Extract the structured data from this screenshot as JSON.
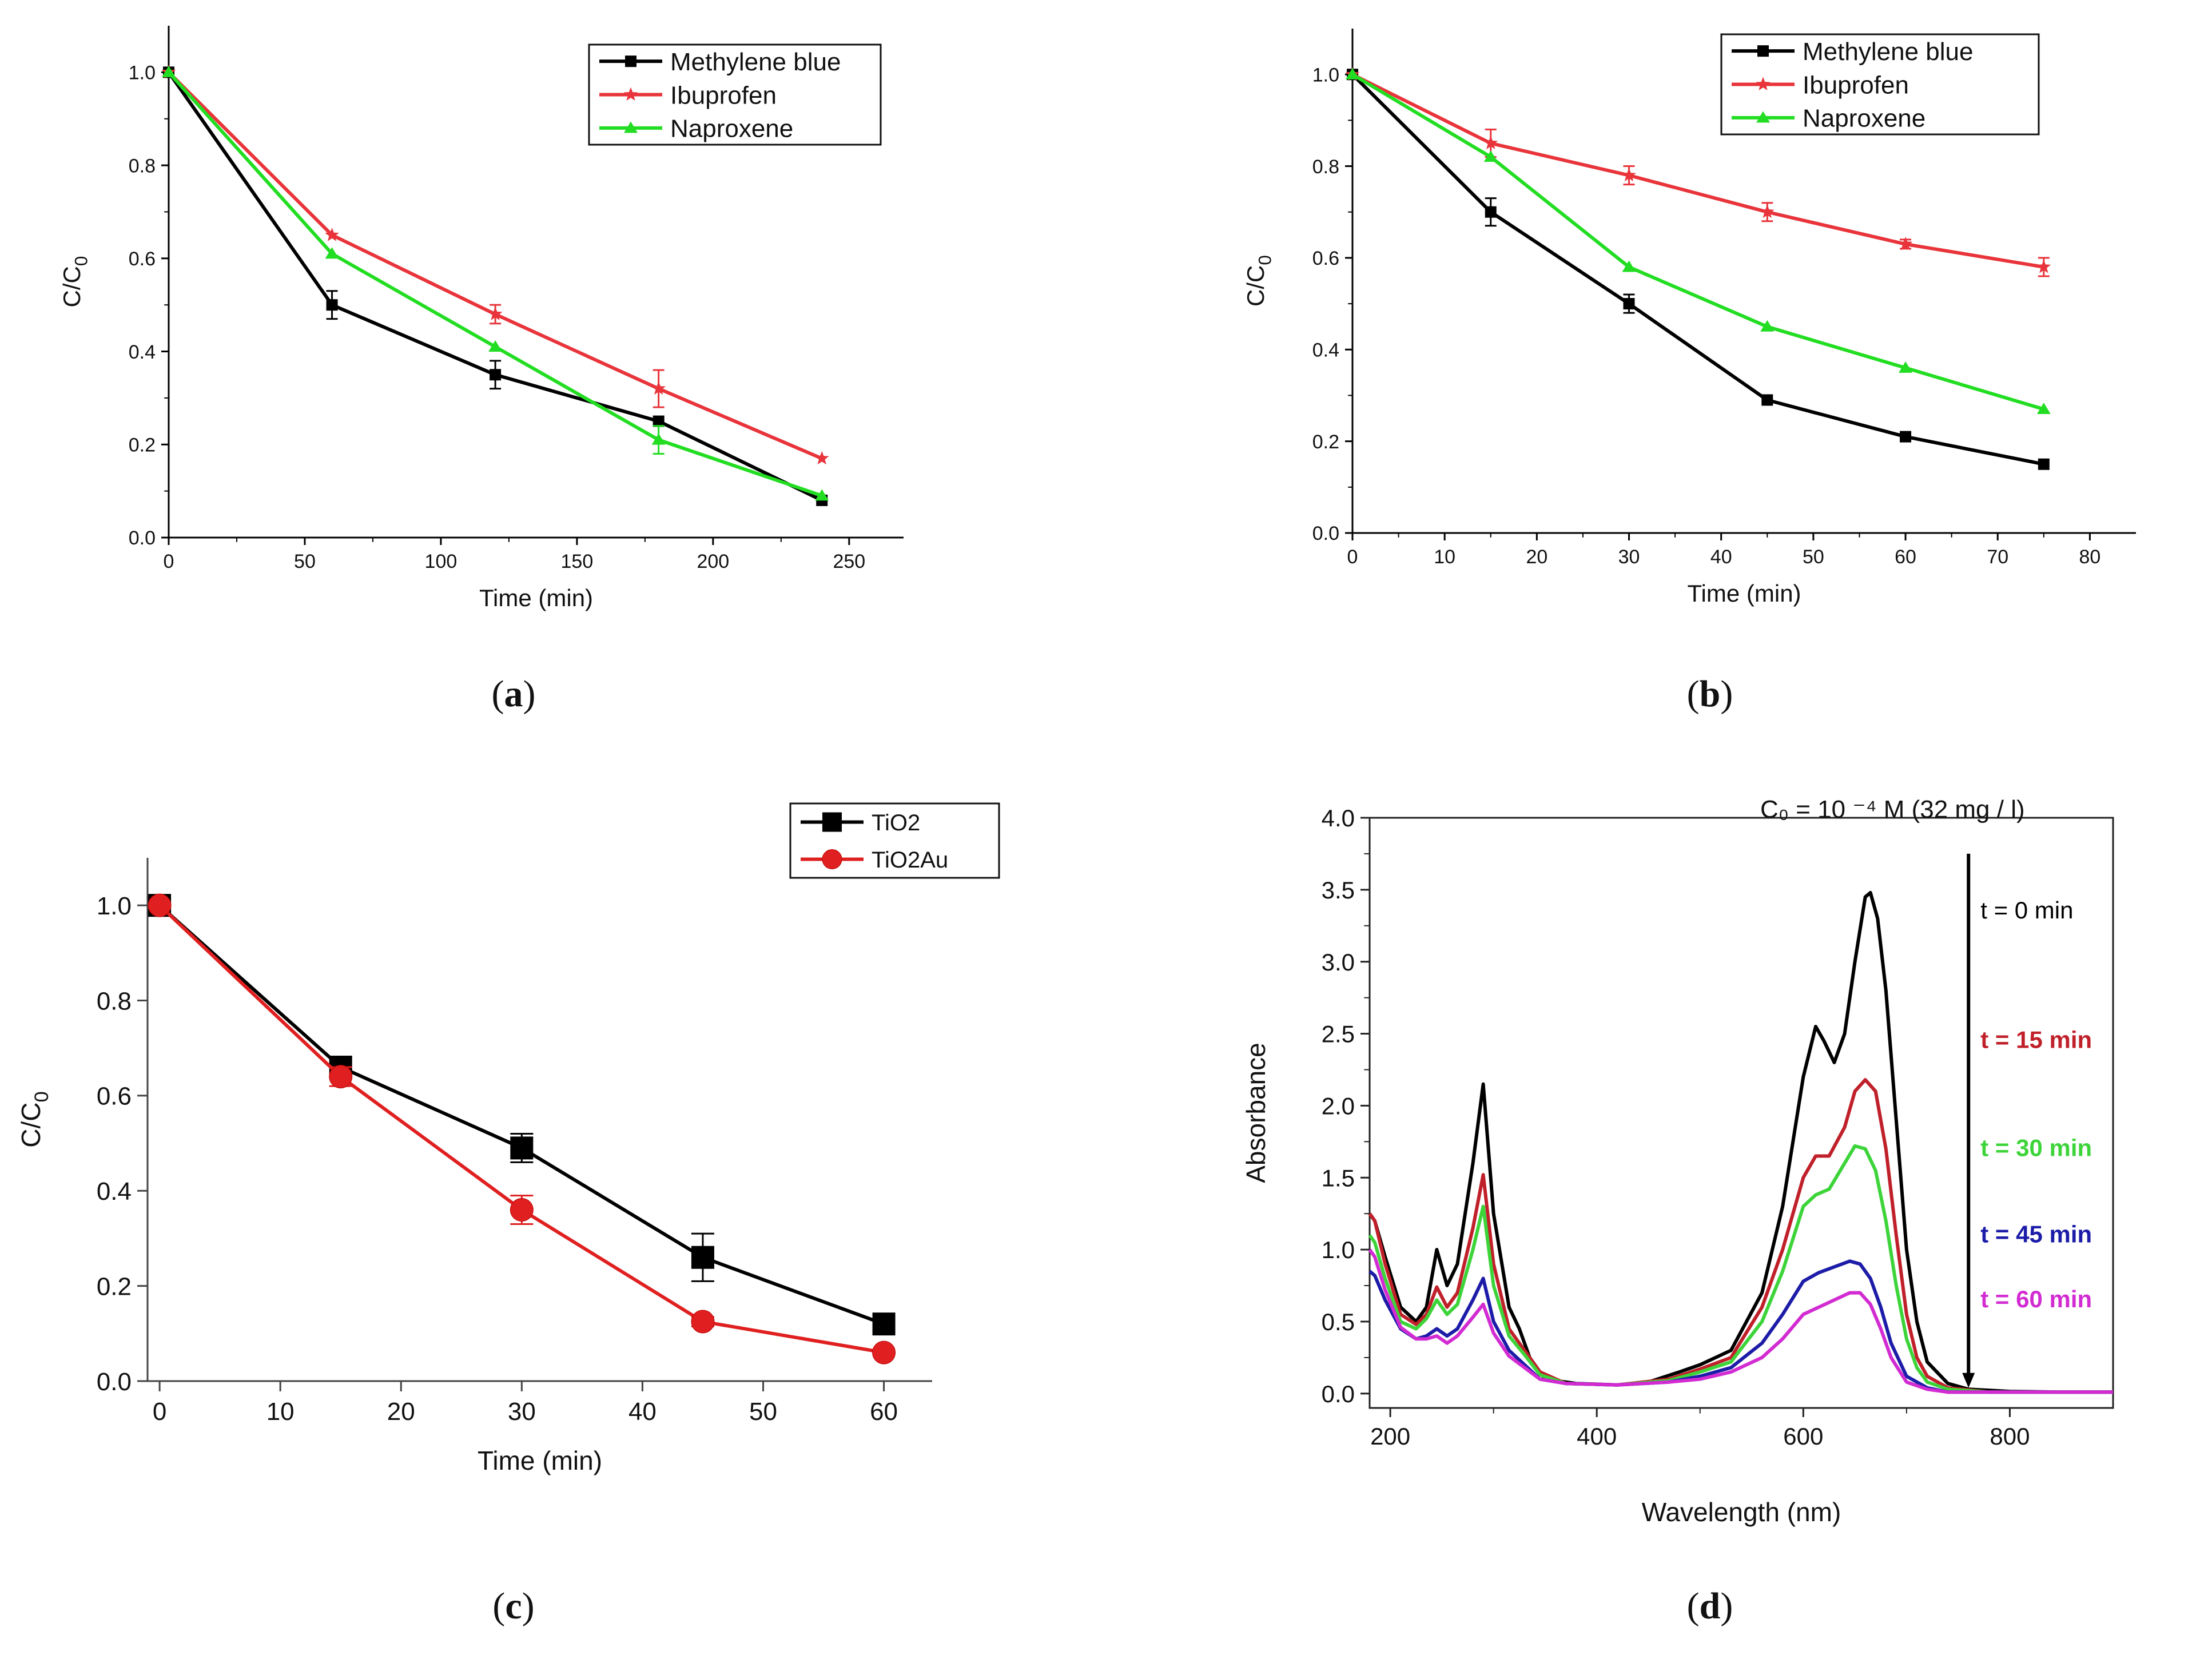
{
  "chart_data": [
    {
      "id": "a",
      "type": "line",
      "caption_letter": "a",
      "xlabel": "Time (min)",
      "ylabel_main": "C/C",
      "ylabel_sub": "0",
      "xlim": [
        0,
        270
      ],
      "ylim": [
        0,
        1.1
      ],
      "xticks": [
        0,
        50,
        100,
        150,
        200,
        250
      ],
      "yticks": [
        0.0,
        0.2,
        0.4,
        0.6,
        0.8,
        1.0
      ],
      "x_decimals": 0,
      "y_decimals": 1,
      "legend_position": "top-right",
      "series": [
        {
          "name": "Methylene blue",
          "color": "#000000",
          "marker": "square",
          "x": [
            0,
            60,
            120,
            180,
            240
          ],
          "y": [
            1.0,
            0.5,
            0.35,
            0.25,
            0.08
          ],
          "err": [
            0,
            0.03,
            0.03,
            0,
            0
          ]
        },
        {
          "name": "Ibuprofen",
          "color": "#e8343a",
          "marker": "star",
          "x": [
            0,
            60,
            120,
            180,
            240
          ],
          "y": [
            1.0,
            0.65,
            0.48,
            0.32,
            0.17
          ],
          "err": [
            0,
            0,
            0.02,
            0.04,
            0
          ]
        },
        {
          "name": "Naproxene",
          "color": "#22dd22",
          "marker": "triangle",
          "x": [
            0,
            60,
            120,
            180,
            240
          ],
          "y": [
            1.0,
            0.61,
            0.41,
            0.21,
            0.09
          ],
          "err": [
            0,
            0,
            0,
            0.03,
            0
          ]
        }
      ]
    },
    {
      "id": "b",
      "type": "line",
      "caption_letter": "b",
      "xlabel": "Time (min)",
      "ylabel_main": "C/C",
      "ylabel_sub": "0",
      "xlim": [
        0,
        85
      ],
      "ylim": [
        0,
        1.1
      ],
      "xticks": [
        0,
        10,
        20,
        30,
        40,
        50,
        60,
        70,
        80
      ],
      "yticks": [
        0.0,
        0.2,
        0.4,
        0.6,
        0.8,
        1.0
      ],
      "x_decimals": 0,
      "y_decimals": 1,
      "legend_position": "top-right",
      "series": [
        {
          "name": "Methylene blue",
          "color": "#000000",
          "marker": "square",
          "x": [
            0,
            15,
            30,
            45,
            60,
            75
          ],
          "y": [
            1.0,
            0.7,
            0.5,
            0.29,
            0.21,
            0.15
          ],
          "err": [
            0,
            0.03,
            0.02,
            0,
            0,
            0
          ]
        },
        {
          "name": "Ibuprofen",
          "color": "#e8343a",
          "marker": "star",
          "x": [
            0,
            15,
            30,
            45,
            60,
            75
          ],
          "y": [
            1.0,
            0.85,
            0.78,
            0.7,
            0.63,
            0.58
          ],
          "err": [
            0,
            0.03,
            0.02,
            0.02,
            0.01,
            0.02
          ]
        },
        {
          "name": "Naproxene",
          "color": "#22dd22",
          "marker": "triangle",
          "x": [
            0,
            15,
            30,
            45,
            60,
            75
          ],
          "y": [
            1.0,
            0.82,
            0.58,
            0.45,
            0.36,
            0.27
          ],
          "err": [
            0,
            0,
            0,
            0,
            0,
            0
          ]
        }
      ]
    },
    {
      "id": "c",
      "type": "line",
      "caption_letter": "c",
      "xlabel": "Time (min)",
      "ylabel_main": "C/C",
      "ylabel_sub": "0",
      "xlim": [
        -1,
        64
      ],
      "ylim": [
        0,
        1.1
      ],
      "xticks": [
        0,
        10,
        20,
        30,
        40,
        50,
        60
      ],
      "yticks": [
        0.0,
        0.2,
        0.4,
        0.6,
        0.8,
        1.0
      ],
      "x_decimals": 0,
      "y_decimals": 1,
      "legend_position": "top-right",
      "series": [
        {
          "name": "TiO2",
          "color": "#000000",
          "marker": "square",
          "x": [
            0,
            15,
            30,
            45,
            60
          ],
          "y": [
            1.0,
            0.66,
            0.49,
            0.26,
            0.12
          ],
          "err": [
            0,
            0.02,
            0.03,
            0.05,
            0
          ]
        },
        {
          "name": "TiO2Au",
          "color": "#e02020",
          "marker": "circle",
          "x": [
            0,
            15,
            30,
            45,
            60
          ],
          "y": [
            1.0,
            0.64,
            0.36,
            0.125,
            0.06
          ],
          "err": [
            0,
            0.02,
            0.03,
            0.01,
            0
          ]
        }
      ]
    },
    {
      "id": "d",
      "type": "line",
      "caption_letter": "d",
      "xlabel": "Wavelength (nm)",
      "ylabel": "Absorbance",
      "xlim": [
        180,
        900
      ],
      "ylim": [
        -0.1,
        4.0
      ],
      "xticks": [
        200,
        400,
        600,
        800
      ],
      "yticks": [
        0.0,
        0.5,
        1.0,
        1.5,
        2.0,
        2.5,
        3.0,
        3.5,
        4.0
      ],
      "x_decimals": 0,
      "y_decimals": 1,
      "concentration_label": "C₀  = 10 ⁻⁴ M (32 mg / l)",
      "arrow_wavelength": 760,
      "arrow_from": 3.75,
      "arrow_to": 0.04,
      "series": [
        {
          "name": "t = 0 min",
          "color": "#000000",
          "x": [
            180,
            185,
            195,
            210,
            225,
            235,
            245,
            255,
            265,
            280,
            290,
            300,
            315,
            325,
            335,
            350,
            380,
            420,
            450,
            480,
            500,
            530,
            560,
            580,
            600,
            612,
            620,
            630,
            640,
            650,
            660,
            665,
            672,
            680,
            690,
            700,
            710,
            720,
            740,
            760,
            800,
            850,
            900
          ],
          "y": [
            1.25,
            1.2,
            0.95,
            0.6,
            0.5,
            0.6,
            1.0,
            0.75,
            0.9,
            1.6,
            2.15,
            1.25,
            0.6,
            0.45,
            0.25,
            0.1,
            0.07,
            0.06,
            0.08,
            0.15,
            0.2,
            0.3,
            0.7,
            1.3,
            2.2,
            2.55,
            2.45,
            2.3,
            2.5,
            3.0,
            3.45,
            3.48,
            3.3,
            2.8,
            1.9,
            1.0,
            0.5,
            0.22,
            0.07,
            0.03,
            0.015,
            0.01,
            0.01
          ]
        },
        {
          "name": "t = 15 min",
          "color": "#c0202a",
          "x": [
            180,
            185,
            195,
            210,
            225,
            235,
            245,
            255,
            265,
            280,
            290,
            300,
            315,
            330,
            345,
            370,
            420,
            470,
            500,
            530,
            560,
            580,
            600,
            612,
            625,
            640,
            650,
            660,
            670,
            680,
            690,
            700,
            710,
            720,
            740,
            780,
            900
          ],
          "y": [
            1.25,
            1.2,
            0.9,
            0.55,
            0.48,
            0.55,
            0.74,
            0.6,
            0.7,
            1.15,
            1.52,
            0.9,
            0.45,
            0.3,
            0.15,
            0.07,
            0.06,
            0.1,
            0.17,
            0.25,
            0.6,
            1.0,
            1.5,
            1.65,
            1.65,
            1.85,
            2.1,
            2.18,
            2.1,
            1.7,
            1.1,
            0.55,
            0.25,
            0.12,
            0.04,
            0.01,
            0.01
          ]
        },
        {
          "name": "t = 30 min",
          "color": "#3dd43a",
          "x": [
            180,
            185,
            195,
            210,
            225,
            235,
            245,
            255,
            265,
            280,
            290,
            300,
            315,
            330,
            345,
            370,
            420,
            470,
            500,
            530,
            560,
            580,
            600,
            612,
            625,
            640,
            650,
            660,
            670,
            680,
            690,
            700,
            710,
            720,
            740,
            780,
            900
          ],
          "y": [
            1.1,
            1.05,
            0.8,
            0.5,
            0.45,
            0.52,
            0.65,
            0.55,
            0.62,
            1.0,
            1.3,
            0.75,
            0.4,
            0.27,
            0.13,
            0.07,
            0.06,
            0.09,
            0.15,
            0.22,
            0.5,
            0.85,
            1.3,
            1.38,
            1.42,
            1.6,
            1.72,
            1.7,
            1.55,
            1.2,
            0.75,
            0.38,
            0.18,
            0.08,
            0.03,
            0.01,
            0.01
          ]
        },
        {
          "name": "t = 45 min",
          "color": "#1c1ca8",
          "x": [
            180,
            185,
            195,
            210,
            225,
            235,
            245,
            255,
            265,
            280,
            290,
            300,
            315,
            330,
            345,
            370,
            420,
            470,
            500,
            530,
            560,
            580,
            600,
            615,
            630,
            645,
            655,
            665,
            675,
            685,
            700,
            720,
            740,
            900
          ],
          "y": [
            0.85,
            0.82,
            0.65,
            0.45,
            0.38,
            0.4,
            0.45,
            0.4,
            0.45,
            0.65,
            0.8,
            0.5,
            0.3,
            0.2,
            0.1,
            0.07,
            0.06,
            0.08,
            0.12,
            0.18,
            0.35,
            0.55,
            0.78,
            0.84,
            0.88,
            0.92,
            0.9,
            0.8,
            0.6,
            0.35,
            0.12,
            0.04,
            0.01,
            0.01
          ]
        },
        {
          "name": "t = 60 min",
          "color": "#d22bd2",
          "x": [
            180,
            185,
            195,
            210,
            225,
            235,
            245,
            255,
            265,
            280,
            290,
            300,
            315,
            330,
            345,
            370,
            420,
            470,
            500,
            530,
            560,
            580,
            600,
            615,
            630,
            645,
            655,
            665,
            675,
            685,
            700,
            720,
            740,
            900
          ],
          "y": [
            1.0,
            0.95,
            0.72,
            0.46,
            0.38,
            0.38,
            0.4,
            0.35,
            0.4,
            0.53,
            0.62,
            0.42,
            0.26,
            0.18,
            0.1,
            0.07,
            0.06,
            0.08,
            0.1,
            0.15,
            0.25,
            0.38,
            0.55,
            0.6,
            0.65,
            0.7,
            0.7,
            0.62,
            0.45,
            0.25,
            0.08,
            0.03,
            0.01,
            0.01
          ]
        }
      ],
      "annotations": [
        {
          "text": "t = 0 min",
          "color": "#000000",
          "wavelength": 765,
          "absorbance": 3.3
        },
        {
          "text": "t = 15 min",
          "color": "#c0202a",
          "wavelength": 765,
          "absorbance": 2.4
        },
        {
          "text": "t = 30 min",
          "color": "#3dd43a",
          "wavelength": 765,
          "absorbance": 1.65
        },
        {
          "text": "t = 45 min",
          "color": "#1c1ca8",
          "wavelength": 765,
          "absorbance": 1.05
        },
        {
          "text": "t = 60 min",
          "color": "#d22bd2",
          "wavelength": 765,
          "absorbance": 0.6
        }
      ]
    }
  ]
}
